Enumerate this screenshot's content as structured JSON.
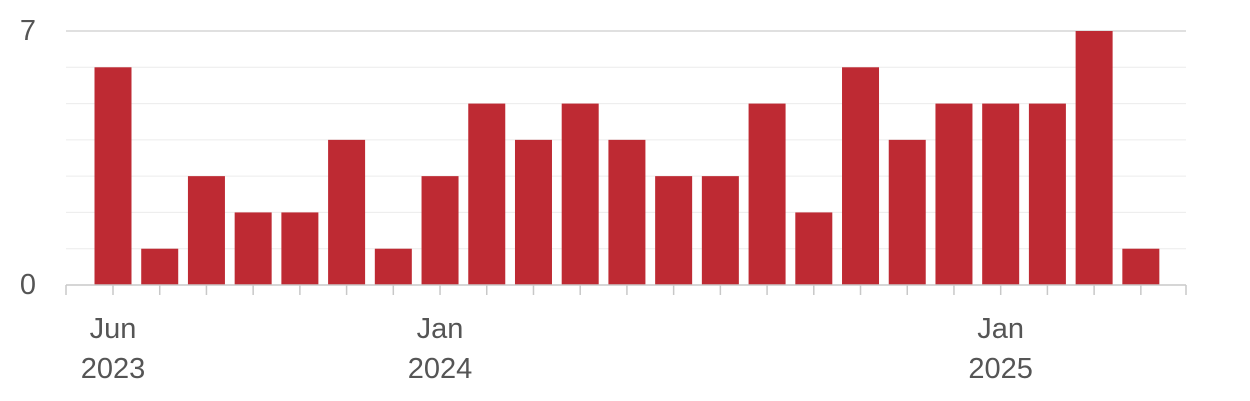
{
  "chart_data": {
    "type": "bar",
    "categories": [
      "2023-06",
      "2023-07",
      "2023-08",
      "2023-09",
      "2023-10",
      "2023-11",
      "2023-12",
      "2024-01",
      "2024-02",
      "2024-03",
      "2024-04",
      "2024-05",
      "2024-06",
      "2024-07",
      "2024-08",
      "2024-09",
      "2024-10",
      "2024-11",
      "2024-12",
      "2025-01",
      "2025-02",
      "2025-03",
      "2025-04"
    ],
    "series": [
      {
        "values": [
          6,
          1,
          3,
          2,
          2,
          4,
          1,
          3,
          5,
          4,
          5,
          4,
          3,
          3,
          5,
          2,
          6,
          4,
          5,
          5,
          5,
          7,
          1
        ]
      }
    ],
    "ylim": [
      0,
      7
    ],
    "y_ticks": [
      "0",
      "7"
    ],
    "x_tick_labels": [
      {
        "category": "2023-06",
        "line1": "Jun",
        "line2": "2023"
      },
      {
        "category": "2024-01",
        "line1": "Jan",
        "line2": "2024"
      },
      {
        "category": "2025-01",
        "line1": "Jan",
        "line2": "2025"
      }
    ],
    "grid": true,
    "legend": "none",
    "bar_color": "#be2a33",
    "title": "",
    "xlabel": "",
    "ylabel": ""
  }
}
